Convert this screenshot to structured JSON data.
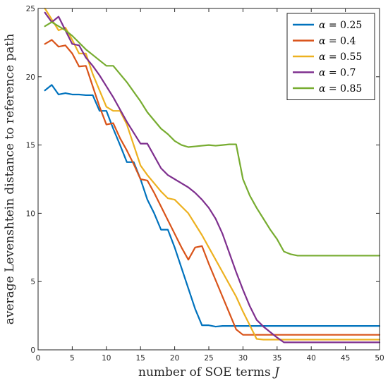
{
  "chart_data": {
    "type": "line",
    "xlabel": "number of SOE terms",
    "xlabel_symbol": "J",
    "ylabel": "average Levenshtein distance to reference path",
    "xlim": [
      0,
      50
    ],
    "ylim": [
      0,
      25
    ],
    "xticks": [
      0,
      5,
      10,
      15,
      20,
      25,
      30,
      35,
      40,
      45,
      50
    ],
    "yticks": [
      0,
      5,
      10,
      15,
      20,
      25
    ],
    "grid": false,
    "legend_placement": "top-right",
    "series": [
      {
        "name": "α = 0.25",
        "symbol": "α",
        "value_label": "0.25",
        "color": "#0072BD",
        "x": [
          1,
          2,
          3,
          4,
          5,
          6,
          7,
          8,
          9,
          10,
          11,
          12,
          13,
          14,
          15,
          16,
          17,
          18,
          19,
          20,
          21,
          22,
          23,
          24,
          25,
          26,
          27,
          28,
          29,
          30,
          31,
          32,
          33,
          34,
          35,
          36,
          37,
          38,
          39,
          40,
          41,
          42,
          43,
          44,
          45,
          46,
          47,
          48,
          49,
          50
        ],
        "y": [
          19.0,
          19.4,
          18.7,
          18.8,
          18.7,
          18.7,
          18.65,
          18.65,
          17.5,
          17.5,
          16.2,
          15.0,
          13.75,
          13.75,
          12.5,
          11.0,
          10.0,
          8.8,
          8.8,
          7.5,
          6.0,
          4.5,
          3.0,
          1.8,
          1.8,
          1.7,
          1.75,
          1.75,
          1.75,
          1.75,
          1.75,
          1.75,
          1.75,
          1.75,
          1.75,
          1.75,
          1.75,
          1.75,
          1.75,
          1.75,
          1.75,
          1.75,
          1.75,
          1.75,
          1.75,
          1.75,
          1.75,
          1.75,
          1.75,
          1.75
        ]
      },
      {
        "name": "α = 0.4",
        "symbol": "α",
        "value_label": "0.4",
        "color": "#D95319",
        "x": [
          1,
          2,
          3,
          4,
          5,
          6,
          7,
          8,
          9,
          10,
          11,
          12,
          13,
          14,
          15,
          16,
          17,
          18,
          19,
          20,
          21,
          22,
          23,
          24,
          25,
          26,
          27,
          28,
          29,
          30,
          31,
          32,
          33,
          34,
          35,
          36,
          37,
          38,
          39,
          40,
          41,
          42,
          43,
          44,
          45,
          46,
          47,
          48,
          49,
          50
        ],
        "y": [
          22.4,
          22.7,
          22.2,
          22.3,
          21.7,
          20.75,
          20.8,
          19.3,
          17.8,
          16.5,
          16.6,
          15.5,
          14.6,
          13.6,
          12.5,
          12.4,
          11.5,
          10.5,
          9.5,
          8.5,
          7.5,
          6.6,
          7.5,
          7.6,
          6.3,
          5.1,
          3.9,
          2.7,
          1.5,
          1.1,
          1.1,
          1.1,
          1.1,
          1.1,
          1.1,
          1.1,
          1.1,
          1.1,
          1.1,
          1.1,
          1.1,
          1.1,
          1.1,
          1.1,
          1.1,
          1.1,
          1.1,
          1.1,
          1.1,
          1.1
        ]
      },
      {
        "name": "α = 0.55",
        "symbol": "α",
        "value_label": "0.55",
        "color": "#EDB120",
        "x": [
          1,
          2,
          3,
          4,
          5,
          6,
          7,
          8,
          9,
          10,
          11,
          12,
          13,
          14,
          15,
          16,
          17,
          18,
          19,
          20,
          21,
          22,
          23,
          24,
          25,
          26,
          27,
          28,
          29,
          30,
          31,
          32,
          33,
          34,
          35,
          36,
          37,
          38,
          39,
          40,
          41,
          42,
          43,
          44,
          45,
          46,
          47,
          48,
          49,
          50
        ],
        "y": [
          25.0,
          24.2,
          23.4,
          23.6,
          22.7,
          21.7,
          21.7,
          20.2,
          19.0,
          17.8,
          17.5,
          17.5,
          16.5,
          15.0,
          13.5,
          12.8,
          12.2,
          11.6,
          11.1,
          11.0,
          10.5,
          10.0,
          9.2,
          8.4,
          7.5,
          6.6,
          5.7,
          4.8,
          3.9,
          2.8,
          1.8,
          0.8,
          0.75,
          0.75,
          0.75,
          0.75,
          0.75,
          0.75,
          0.75,
          0.75,
          0.75,
          0.75,
          0.75,
          0.75,
          0.75,
          0.75,
          0.75,
          0.75,
          0.75,
          0.75
        ]
      },
      {
        "name": "α = 0.7",
        "symbol": "α",
        "value_label": "0.7",
        "color": "#7E2F8E",
        "x": [
          1,
          2,
          3,
          4,
          5,
          6,
          7,
          8,
          9,
          10,
          11,
          12,
          13,
          14,
          15,
          16,
          17,
          18,
          19,
          20,
          21,
          22,
          23,
          24,
          25,
          26,
          27,
          28,
          29,
          30,
          31,
          32,
          33,
          34,
          35,
          36,
          37,
          38,
          39,
          40,
          41,
          42,
          43,
          44,
          45,
          46,
          47,
          48,
          49,
          50
        ],
        "y": [
          24.7,
          24.0,
          24.4,
          23.4,
          22.4,
          22.3,
          21.4,
          20.8,
          20.1,
          19.3,
          18.5,
          17.6,
          16.7,
          15.9,
          15.1,
          15.1,
          14.2,
          13.3,
          12.8,
          12.5,
          12.2,
          11.9,
          11.5,
          11.0,
          10.4,
          9.6,
          8.5,
          7.1,
          5.7,
          4.4,
          3.2,
          2.2,
          1.7,
          1.3,
          0.9,
          0.55,
          0.55,
          0.55,
          0.55,
          0.55,
          0.55,
          0.55,
          0.55,
          0.55,
          0.55,
          0.55,
          0.55,
          0.55,
          0.55,
          0.55
        ]
      },
      {
        "name": "α = 0.85",
        "symbol": "α",
        "value_label": "0.85",
        "color": "#77AC30",
        "x": [
          1,
          2,
          3,
          4,
          5,
          6,
          7,
          8,
          9,
          10,
          11,
          12,
          13,
          14,
          15,
          16,
          17,
          18,
          19,
          20,
          21,
          22,
          23,
          24,
          25,
          26,
          27,
          28,
          29,
          30,
          31,
          32,
          33,
          34,
          35,
          36,
          37,
          38,
          39,
          40,
          41,
          42,
          43,
          44,
          45,
          46,
          47,
          48,
          49,
          50
        ],
        "y": [
          23.7,
          24.0,
          23.7,
          23.4,
          23.0,
          22.5,
          22.0,
          21.6,
          21.2,
          20.8,
          20.8,
          20.2,
          19.6,
          18.9,
          18.2,
          17.4,
          16.8,
          16.2,
          15.8,
          15.3,
          15.0,
          14.85,
          14.9,
          14.95,
          15.0,
          14.95,
          15.0,
          15.05,
          15.05,
          12.5,
          11.3,
          10.4,
          9.6,
          8.8,
          8.1,
          7.2,
          7.0,
          6.9,
          6.9,
          6.9,
          6.9,
          6.9,
          6.9,
          6.9,
          6.9,
          6.9,
          6.9,
          6.9,
          6.9,
          6.9
        ]
      }
    ]
  }
}
